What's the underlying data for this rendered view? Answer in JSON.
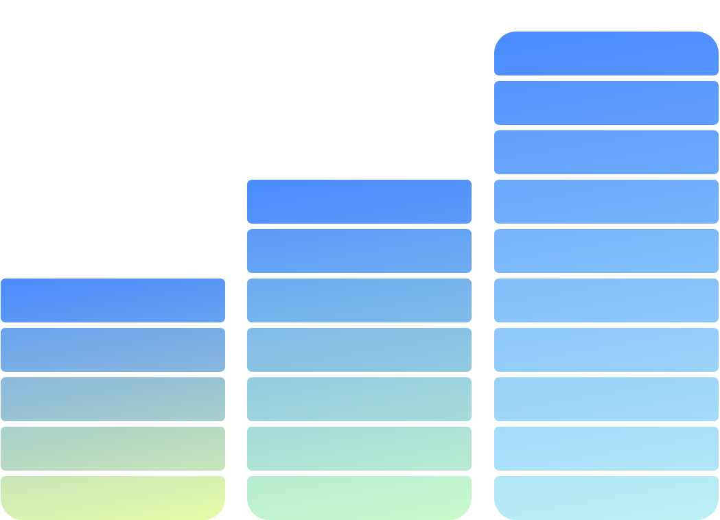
{
  "chart_data": {
    "type": "bar",
    "subtype": "stacked-segment-columns",
    "categories": [
      "",
      "",
      ""
    ],
    "values": [
      5,
      7,
      10
    ],
    "title": "",
    "xlabel": "",
    "ylabel": "",
    "ylim": [
      0,
      10
    ],
    "grid": false,
    "legend": "none",
    "axes_visible": false,
    "series": [
      {
        "gradient_top": "#4a8bff",
        "gradient_bottom": "#e7fca8"
      },
      {
        "gradient_top": "#4a8bff",
        "gradient_bottom": "#c9fbcb"
      },
      {
        "gradient_top": "#4a8bff",
        "gradient_bottom": "#bcf0f6"
      }
    ]
  }
}
